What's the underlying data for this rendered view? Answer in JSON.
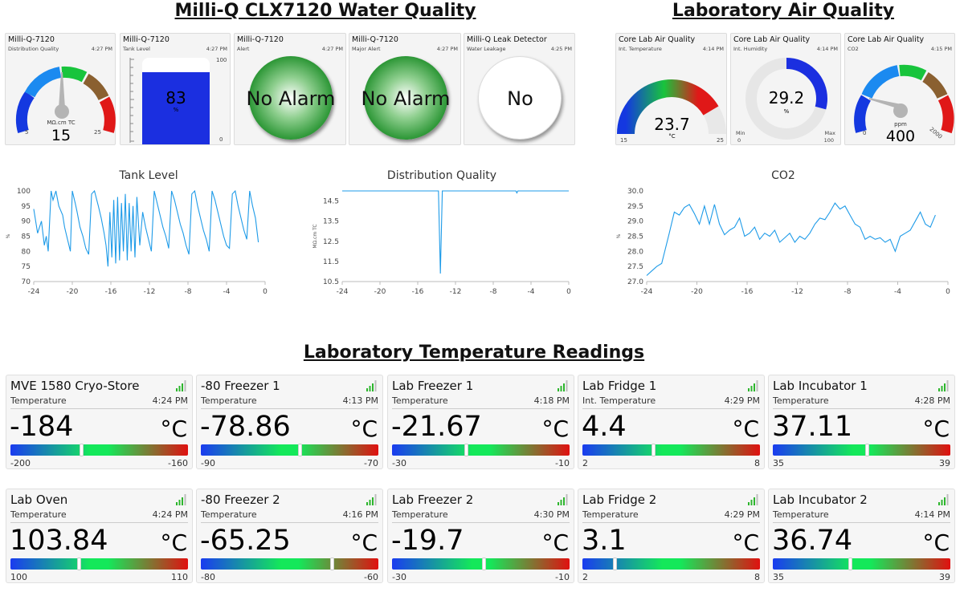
{
  "titles": {
    "water": "Milli-Q CLX7120 Water Quality",
    "air": "Laboratory Air Quality",
    "temps": "Laboratory Temperature Readings"
  },
  "water_tiles": {
    "quality": {
      "name": "Milli-Q-7120",
      "sub": "Distribution Quality",
      "time": "4:27 PM",
      "value": "15",
      "unit": "MΩ.cm TC",
      "min": "5",
      "max": "25"
    },
    "tank": {
      "name": "Milli-Q-7120",
      "sub": "Tank Level",
      "time": "4:27 PM",
      "value": "83",
      "unit": "%",
      "min": "0",
      "max": "100",
      "fill_percent": 83
    },
    "alert": {
      "name": "Milli-Q-7120",
      "sub": "Alert",
      "time": "4:27 PM",
      "status": "No Alarm"
    },
    "major_alert": {
      "name": "Milli-Q-7120",
      "sub": "Major Alert",
      "time": "4:27 PM",
      "status": "No Alarm"
    },
    "leak": {
      "name": "Milli-Q Leak Detector",
      "sub": "Water Leakage",
      "time": "4:25 PM",
      "status": "No"
    }
  },
  "air_tiles": {
    "temp": {
      "name": "Core Lab Air Quality",
      "sub": "Int. Temperature",
      "time": "4:14 PM",
      "value": "23.7",
      "unit": "°C",
      "min": "15",
      "max": "25"
    },
    "humidity": {
      "name": "Core Lab Air Quality",
      "sub": "Int. Humidity",
      "time": "4:14 PM",
      "value": "29.2",
      "unit": "%",
      "min_label": "Min",
      "max_label": "Max",
      "min": "0",
      "max": "100"
    },
    "co2": {
      "name": "Core Lab Air Quality",
      "sub": "CO2",
      "time": "4:15 PM",
      "value": "400",
      "unit": "ppm",
      "min": "0",
      "max": "2000"
    }
  },
  "chart_data": [
    {
      "type": "line",
      "title": "Tank Level",
      "ylabel": "%",
      "xlabel": "",
      "xlim": [
        -24,
        0
      ],
      "ylim": [
        70,
        100
      ],
      "xticks": [
        "-24",
        "-20",
        "-16",
        "-12",
        "-8",
        "-4",
        "0"
      ],
      "yticks": [
        "70",
        "75",
        "80",
        "85",
        "90",
        "95",
        "100"
      ],
      "x": [
        -24,
        -23.6,
        -23.2,
        -22.9,
        -22.7,
        -22.5,
        -22.2,
        -22,
        -21.7,
        -21.4,
        -21,
        -20.8,
        -20.5,
        -20.2,
        -20,
        -19.7,
        -19.5,
        -19.2,
        -18.9,
        -18.6,
        -18.3,
        -18,
        -17.7,
        -17.3,
        -17,
        -16.7,
        -16.5,
        -16.3,
        -16.1,
        -15.9,
        -15.7,
        -15.5,
        -15.3,
        -15.1,
        -14.9,
        -14.7,
        -14.5,
        -14.3,
        -14.1,
        -13.9,
        -13.7,
        -13.5,
        -13.3,
        -13,
        -12.7,
        -12.4,
        -12.1,
        -11.8,
        -11.5,
        -11.2,
        -10.9,
        -10.6,
        -10.3,
        -10,
        -9.7,
        -9.4,
        -9.1,
        -8.8,
        -8.5,
        -8.2,
        -7.9,
        -7.6,
        -7.3,
        -7,
        -6.7,
        -6.4,
        -6.1,
        -5.8,
        -5.5,
        -5.2,
        -4.9,
        -4.6,
        -4.3,
        -4,
        -3.7,
        -3.4,
        -3.1,
        -2.8,
        -2.5,
        -2.2,
        -1.9,
        -1.6,
        -1.3,
        -1,
        -0.7
      ],
      "y": [
        94,
        86,
        90,
        82,
        85,
        80,
        100,
        97,
        100,
        95,
        92,
        88,
        84,
        80,
        100,
        96,
        93,
        88,
        85,
        81,
        79,
        99,
        100,
        95,
        91,
        86,
        82,
        75,
        93,
        78,
        97,
        76,
        98,
        77,
        96,
        80,
        99,
        77,
        96,
        80,
        95,
        78,
        98,
        82,
        93,
        88,
        84,
        80,
        100,
        96,
        92,
        88,
        85,
        81,
        100,
        97,
        93,
        89,
        86,
        82,
        79,
        99,
        100,
        95,
        91,
        87,
        84,
        80,
        100,
        97,
        93,
        89,
        85,
        82,
        81,
        99,
        100,
        95,
        91,
        87,
        84,
        100,
        95,
        91,
        83
      ]
    },
    {
      "type": "line",
      "title": "Distribution Quality",
      "ylabel": "MΩ.cm TC",
      "xlabel": "",
      "xlim": [
        -24,
        0
      ],
      "ylim": [
        10.5,
        15
      ],
      "xticks": [
        "-24",
        "-20",
        "-16",
        "-12",
        "-8",
        "-4",
        "0"
      ],
      "yticks": [
        "10.5",
        "11.5",
        "12.5",
        "13.5",
        "14.5"
      ],
      "x": [
        -24,
        -14,
        -13.8,
        -13.6,
        -13.4,
        -5.6,
        -5.5,
        -5.4,
        0
      ],
      "y": [
        15,
        15,
        15,
        10.9,
        15,
        15,
        14.9,
        15,
        15
      ]
    },
    {
      "type": "line",
      "title": "CO2",
      "ylabel": "%",
      "xlabel": "",
      "xlim": [
        -24,
        0
      ],
      "ylim": [
        27,
        30
      ],
      "xticks": [
        "-24",
        "-20",
        "-16",
        "-12",
        "-8",
        "-4",
        "0"
      ],
      "yticks": [
        "27.0",
        "27.5",
        "28.0",
        "28.5",
        "29.0",
        "29.5",
        "30.0"
      ],
      "x": [
        -24,
        -23.6,
        -23.2,
        -22.8,
        -22.5,
        -22.2,
        -21.8,
        -21.4,
        -21,
        -20.6,
        -20.2,
        -19.8,
        -19.4,
        -19,
        -18.6,
        -18.2,
        -17.8,
        -17.4,
        -17,
        -16.6,
        -16.2,
        -15.8,
        -15.4,
        -15,
        -14.6,
        -14.2,
        -13.8,
        -13.4,
        -13,
        -12.6,
        -12.2,
        -11.8,
        -11.4,
        -11,
        -10.6,
        -10.2,
        -9.8,
        -9.4,
        -9,
        -8.6,
        -8.2,
        -7.8,
        -7.4,
        -7,
        -6.6,
        -6.2,
        -5.8,
        -5.4,
        -5,
        -4.6,
        -4.2,
        -3.8,
        -3.4,
        -3,
        -2.6,
        -2.2,
        -1.8,
        -1.4,
        -1
      ],
      "y": [
        27.2,
        27.35,
        27.5,
        27.6,
        28.1,
        28.6,
        29.3,
        29.2,
        29.45,
        29.55,
        29.25,
        28.9,
        29.5,
        28.9,
        29.55,
        28.9,
        28.55,
        28.7,
        28.8,
        29.1,
        28.5,
        28.6,
        28.8,
        28.4,
        28.6,
        28.5,
        28.7,
        28.3,
        28.45,
        28.6,
        28.3,
        28.5,
        28.4,
        28.6,
        28.9,
        29.1,
        29.05,
        29.3,
        29.6,
        29.4,
        29.5,
        29.2,
        28.9,
        28.8,
        28.4,
        28.5,
        28.4,
        28.45,
        28.3,
        28.4,
        28.0,
        28.5,
        28.6,
        28.7,
        29.0,
        29.3,
        28.9,
        28.8,
        29.2
      ]
    }
  ],
  "temp_cards": [
    {
      "name": "MVE 1580 Cryo-Store",
      "sub": "Temperature",
      "time": "4:24 PM",
      "value": "-184",
      "unit": "°C",
      "min": "-200",
      "max": "-160",
      "level": 0.4
    },
    {
      "name": "-80 Freezer 1",
      "sub": "Temperature",
      "time": "4:13 PM",
      "value": "-78.86",
      "unit": "°C",
      "min": "-90",
      "max": "-70",
      "level": 0.557
    },
    {
      "name": "Lab Freezer 1",
      "sub": "Temperature",
      "time": "4:18 PM",
      "value": "-21.67",
      "unit": "°C",
      "min": "-30",
      "max": "-10",
      "level": 0.4165
    },
    {
      "name": "Lab Fridge 1",
      "sub": "Int. Temperature",
      "time": "4:29 PM",
      "value": "4.4",
      "unit": "°C",
      "min": "2",
      "max": "8",
      "level": 0.4
    },
    {
      "name": "Lab Incubator 1",
      "sub": "Temperature",
      "time": "4:28 PM",
      "value": "37.11",
      "unit": "°C",
      "min": "35",
      "max": "39",
      "level": 0.5275
    },
    {
      "name": "Lab Oven",
      "sub": "Temperature",
      "time": "4:24 PM",
      "value": "103.84",
      "unit": "°C",
      "min": "100",
      "max": "110",
      "level": 0.384
    },
    {
      "name": "-80 Freezer 2",
      "sub": "Temperature",
      "time": "4:16 PM",
      "value": "-65.25",
      "unit": "°C",
      "min": "-80",
      "max": "-60",
      "level": 0.7375
    },
    {
      "name": "Lab Freezer 2",
      "sub": "Temperature",
      "time": "4:30 PM",
      "value": "-19.7",
      "unit": "°C",
      "min": "-30",
      "max": "-10",
      "level": 0.515
    },
    {
      "name": "Lab Fridge 2",
      "sub": "Temperature",
      "time": "4:29 PM",
      "value": "3.1",
      "unit": "°C",
      "min": "2",
      "max": "8",
      "level": 0.183
    },
    {
      "name": "Lab Incubator 2",
      "sub": "Temperature",
      "time": "4:14 PM",
      "value": "36.74",
      "unit": "°C",
      "min": "35",
      "max": "39",
      "level": 0.435
    }
  ],
  "icons": {
    "signal": "signal-strength-icon"
  },
  "colors": {
    "chart_line": "#1e9be8",
    "alarm_green": "#1f8f2a",
    "tank_blue": "#1b2fe0",
    "gauge_red": "#e01818",
    "gauge_green": "#18c43c",
    "gauge_blue": "#1438e0"
  }
}
